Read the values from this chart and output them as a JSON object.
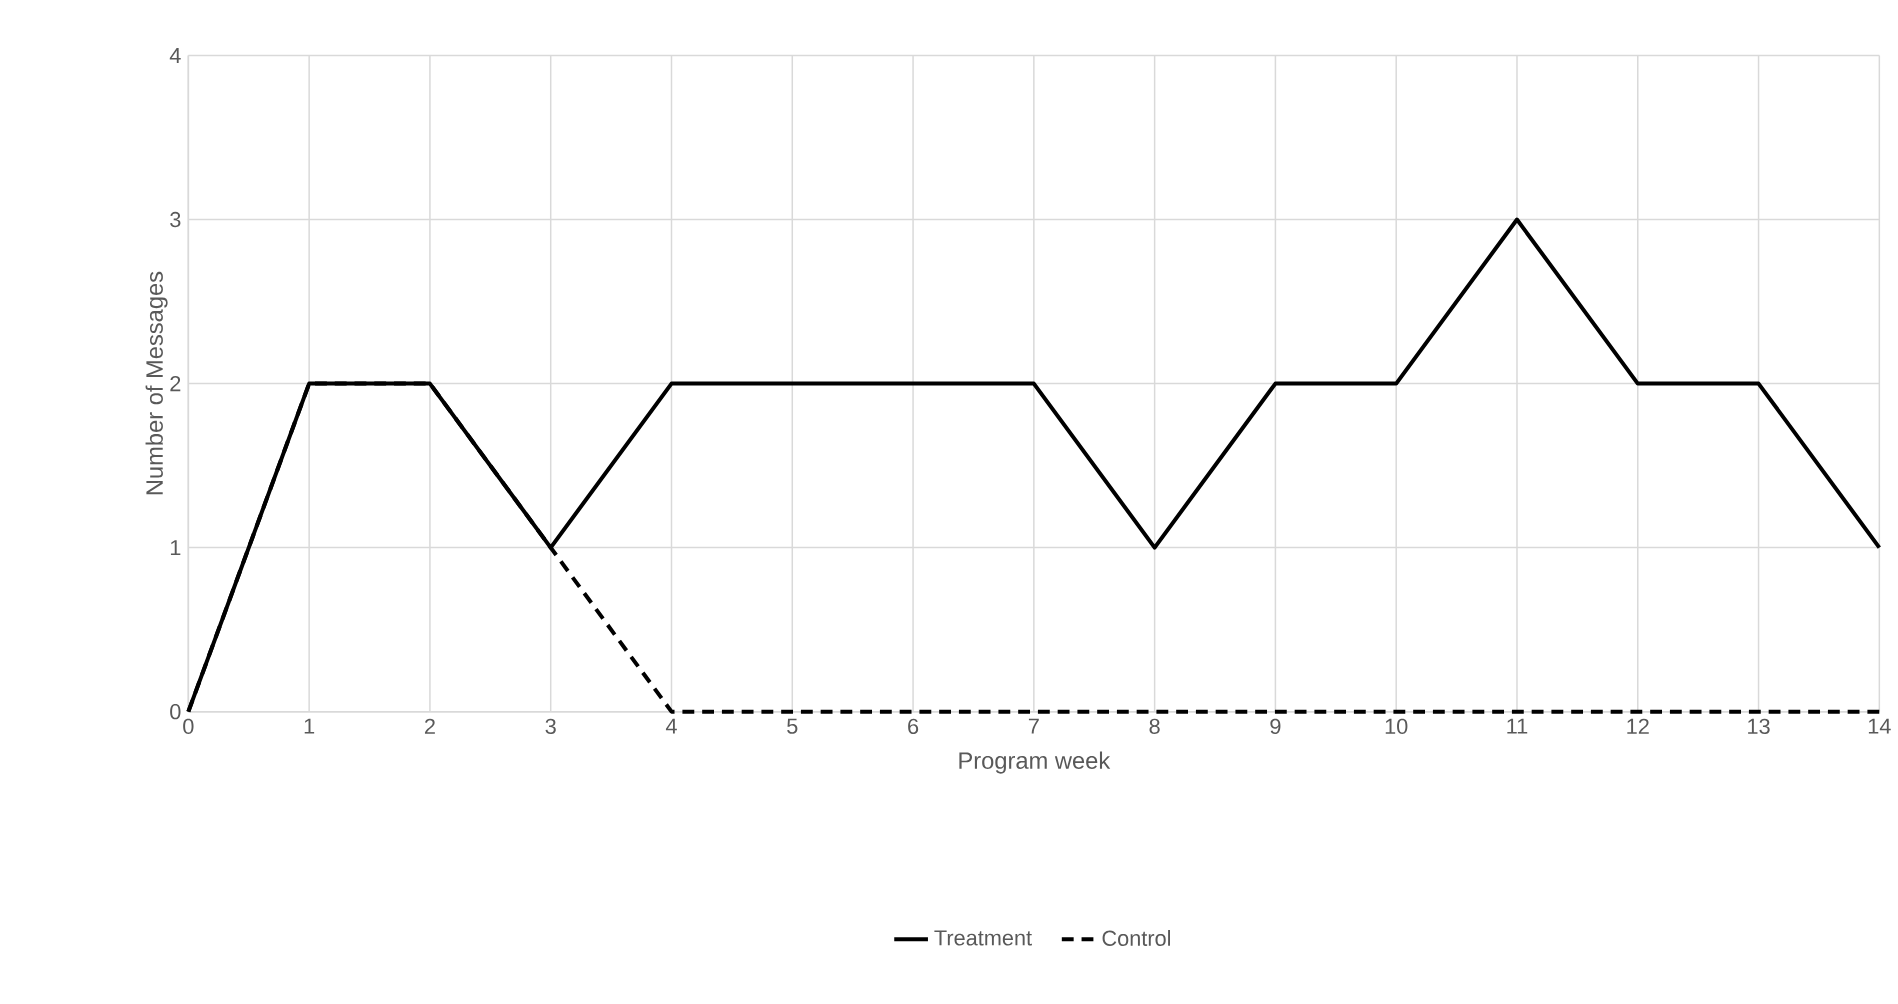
{
  "chart_data": {
    "type": "line",
    "xlabel": "Program week",
    "ylabel": "Number of Messages",
    "x": [
      0,
      1,
      2,
      3,
      4,
      5,
      6,
      7,
      8,
      9,
      10,
      11,
      12,
      13,
      14
    ],
    "series": [
      {
        "name": "Treatment",
        "color": "#000000",
        "line_style": "solid",
        "values": [
          0,
          2,
          2,
          1,
          2,
          2,
          2,
          2,
          1,
          2,
          2,
          3,
          2,
          2,
          1
        ]
      },
      {
        "name": "Control",
        "color": "#000000",
        "line_style": "dashed",
        "values": [
          0,
          2,
          2,
          1,
          0,
          0,
          0,
          0,
          0,
          0,
          0,
          0,
          0,
          0,
          0
        ]
      }
    ],
    "xlim": [
      0,
      14
    ],
    "xticks": [
      0,
      1,
      2,
      3,
      4,
      5,
      6,
      7,
      8,
      9,
      10,
      11,
      12,
      13,
      14
    ],
    "ylim": [
      0,
      4
    ],
    "yticks": [
      0,
      1,
      2,
      3,
      4
    ],
    "grid": true,
    "legend": "bottom",
    "marker": "none"
  }
}
